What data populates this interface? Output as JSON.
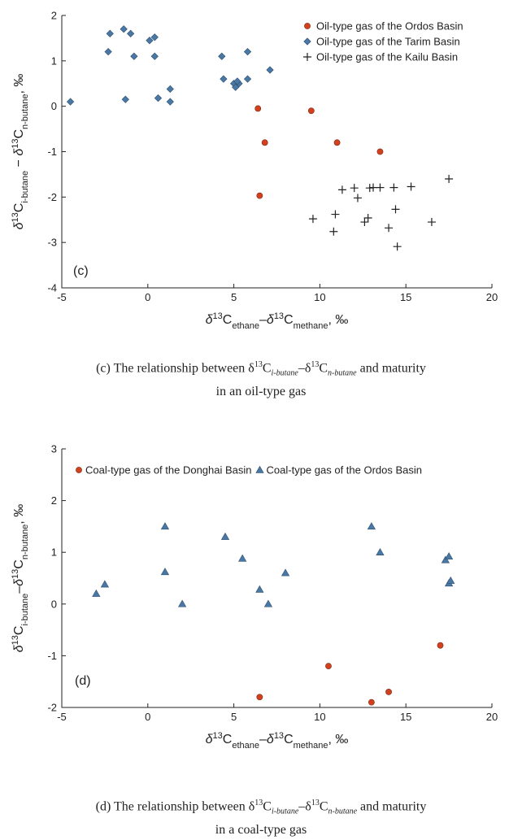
{
  "chart_data": [
    {
      "type": "scatter",
      "panel_label": "(c)",
      "xlim": [
        -5,
        20
      ],
      "ylim": [
        -4,
        2
      ],
      "xticks": [
        -5,
        0,
        5,
        10,
        15,
        20
      ],
      "yticks": [
        -4,
        -3,
        -2,
        -1,
        0,
        1,
        2
      ],
      "xlabel": "δ13Cethane–δ13Cmethane, ‰",
      "ylabel": "δ13Ci-butane − δ13Cn-butane, ‰",
      "xlabel_parts": [
        {
          "text": "δ",
          "italic": true
        },
        {
          "text": "13",
          "sup": true
        },
        {
          "text": "C"
        },
        {
          "text": "ethane",
          "sub": true
        },
        {
          "text": "–"
        },
        {
          "text": "δ",
          "italic": true
        },
        {
          "text": "13",
          "sup": true
        },
        {
          "text": "C"
        },
        {
          "text": "methane",
          "sub": true
        },
        {
          "text": ", ‰"
        }
      ],
      "ylabel_parts": [
        {
          "text": "δ",
          "italic": true
        },
        {
          "text": "13",
          "sup": true
        },
        {
          "text": "C"
        },
        {
          "text": "i-butane",
          "sub": true
        },
        {
          "text": " − "
        },
        {
          "text": "δ",
          "italic": true
        },
        {
          "text": "13",
          "sup": true
        },
        {
          "text": "C"
        },
        {
          "text": "n-butane",
          "sub": true
        },
        {
          "text": ", ‰"
        }
      ],
      "legend_position": "top-right",
      "caption": "(c) The relationship between δ13Ci-butane–δ13Cn-butane and maturity in an oil-type gas",
      "caption_line1": [
        {
          "text": "(c) The relationship between δ"
        },
        {
          "text": "13",
          "sup": true
        },
        {
          "text": "C"
        },
        {
          "text": "i-butane",
          "sub": true
        },
        {
          "text": "–δ"
        },
        {
          "text": "13",
          "sup": true
        },
        {
          "text": "C"
        },
        {
          "text": "n-butane",
          "sub": true
        },
        {
          "text": " and maturity"
        }
      ],
      "caption_line2": "in an oil-type gas",
      "series": [
        {
          "name": "Oil-type gas of the Ordos Basin",
          "marker": "circle",
          "color": "#d2401e",
          "x": [
            6.4,
            9.5,
            6.8,
            11.0,
            13.5,
            6.5
          ],
          "y": [
            -0.05,
            -0.1,
            -0.8,
            -0.8,
            -1.0,
            -1.97
          ]
        },
        {
          "name": "Oil-type gas of the Tarim Basin",
          "marker": "diamond",
          "color": "#4a78a5",
          "x": [
            -4.5,
            -2.3,
            -2.2,
            -1.4,
            -1.3,
            -1.0,
            -0.8,
            0.1,
            0.4,
            0.4,
            0.6,
            1.3,
            1.3,
            4.3,
            4.4,
            5.0,
            5.1,
            5.3,
            5.2,
            5.8,
            5.8,
            7.1
          ],
          "y": [
            0.1,
            1.2,
            1.6,
            1.7,
            0.15,
            1.6,
            1.1,
            1.45,
            1.52,
            1.1,
            0.18,
            0.38,
            0.1,
            1.1,
            0.6,
            0.5,
            0.42,
            0.5,
            0.55,
            1.2,
            0.6,
            0.8
          ]
        },
        {
          "name": "Oil-type gas of the Kailu Basin",
          "marker": "plus",
          "color": "#222222",
          "x": [
            9.6,
            10.9,
            10.8,
            11.3,
            12.0,
            12.2,
            12.6,
            12.8,
            12.9,
            13.1,
            13.5,
            14.0,
            14.3,
            14.4,
            14.5,
            15.3,
            16.5,
            17.5
          ],
          "y": [
            -2.48,
            -2.38,
            -2.76,
            -1.84,
            -1.8,
            -2.02,
            -2.55,
            -2.46,
            -1.8,
            -1.79,
            -1.79,
            -2.68,
            -1.79,
            -2.27,
            -3.09,
            -1.77,
            -2.55,
            -1.6
          ]
        }
      ]
    },
    {
      "type": "scatter",
      "panel_label": "(d)",
      "xlim": [
        -5,
        20
      ],
      "ylim": [
        -2,
        3
      ],
      "xticks": [
        -5,
        0,
        5,
        10,
        15,
        20
      ],
      "yticks": [
        -2,
        -1,
        0,
        1,
        2,
        3
      ],
      "xlabel": "δ13Cethane–δ13Cmethane, ‰",
      "ylabel": "δ13Ci-butane–δ13Cn-butane, ‰",
      "xlabel_parts": [
        {
          "text": "δ",
          "italic": true
        },
        {
          "text": "13",
          "sup": true
        },
        {
          "text": "C"
        },
        {
          "text": "ethane",
          "sub": true
        },
        {
          "text": "–"
        },
        {
          "text": "δ",
          "italic": true
        },
        {
          "text": "13",
          "sup": true
        },
        {
          "text": "C"
        },
        {
          "text": "methane",
          "sub": true
        },
        {
          "text": ", ‰"
        }
      ],
      "ylabel_parts": [
        {
          "text": "δ",
          "italic": true
        },
        {
          "text": "13",
          "sup": true
        },
        {
          "text": "C"
        },
        {
          "text": "i-butane",
          "sub": true
        },
        {
          "text": "–"
        },
        {
          "text": "δ",
          "italic": true
        },
        {
          "text": "13",
          "sup": true
        },
        {
          "text": "C"
        },
        {
          "text": "n-butane",
          "sub": true
        },
        {
          "text": ", ‰"
        }
      ],
      "legend_position": "top",
      "caption": "(d) The relationship between δ13Ci-butane–δ13Cn-butane and maturity in a coal-type gas",
      "caption_line1": [
        {
          "text": "(d) The relationship between δ"
        },
        {
          "text": "13",
          "sup": true
        },
        {
          "text": "C"
        },
        {
          "text": "i-butane",
          "sub": true
        },
        {
          "text": "–δ"
        },
        {
          "text": "13",
          "sup": true
        },
        {
          "text": "C"
        },
        {
          "text": "n-butane",
          "sub": true
        },
        {
          "text": " and maturity"
        }
      ],
      "caption_line2": "in a coal-type gas",
      "series": [
        {
          "name": "Coal-type gas of the Donghai Basin",
          "marker": "circle",
          "color": "#d2401e",
          "x": [
            6.5,
            10.5,
            13.0,
            14.0,
            17.0
          ],
          "y": [
            -1.8,
            -1.2,
            -1.9,
            -1.7,
            -0.8
          ]
        },
        {
          "name": "Coal-type gas of the Ordos Basin",
          "marker": "triangle",
          "color": "#4a78a5",
          "x": [
            -3.0,
            -2.5,
            1.0,
            1.0,
            2.0,
            4.5,
            5.5,
            6.5,
            7.0,
            8.0,
            13.0,
            13.5,
            17.3,
            17.5,
            17.5,
            17.6
          ],
          "y": [
            0.2,
            0.38,
            1.5,
            0.62,
            0.0,
            1.3,
            0.88,
            0.28,
            0.0,
            0.6,
            1.5,
            1.0,
            0.85,
            0.92,
            0.4,
            0.45
          ]
        }
      ]
    }
  ]
}
